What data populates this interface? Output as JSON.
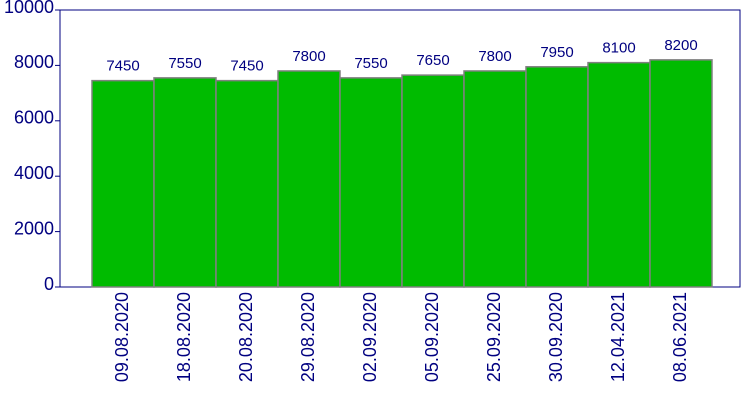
{
  "chart_data": {
    "type": "bar",
    "categories": [
      "09.08.2020",
      "18.08.2020",
      "20.08.2020",
      "29.08.2020",
      "02.09.2020",
      "05.09.2020",
      "25.09.2020",
      "30.09.2020",
      "12.04.2021",
      "08.06.2021"
    ],
    "values": [
      7450,
      7550,
      7450,
      7800,
      7550,
      7650,
      7800,
      7950,
      8100,
      8200
    ],
    "color": "#00bb00",
    "ylim": [
      0,
      10000
    ],
    "yticks": [
      0,
      2000,
      4000,
      6000,
      8000,
      10000
    ],
    "grid": false
  }
}
